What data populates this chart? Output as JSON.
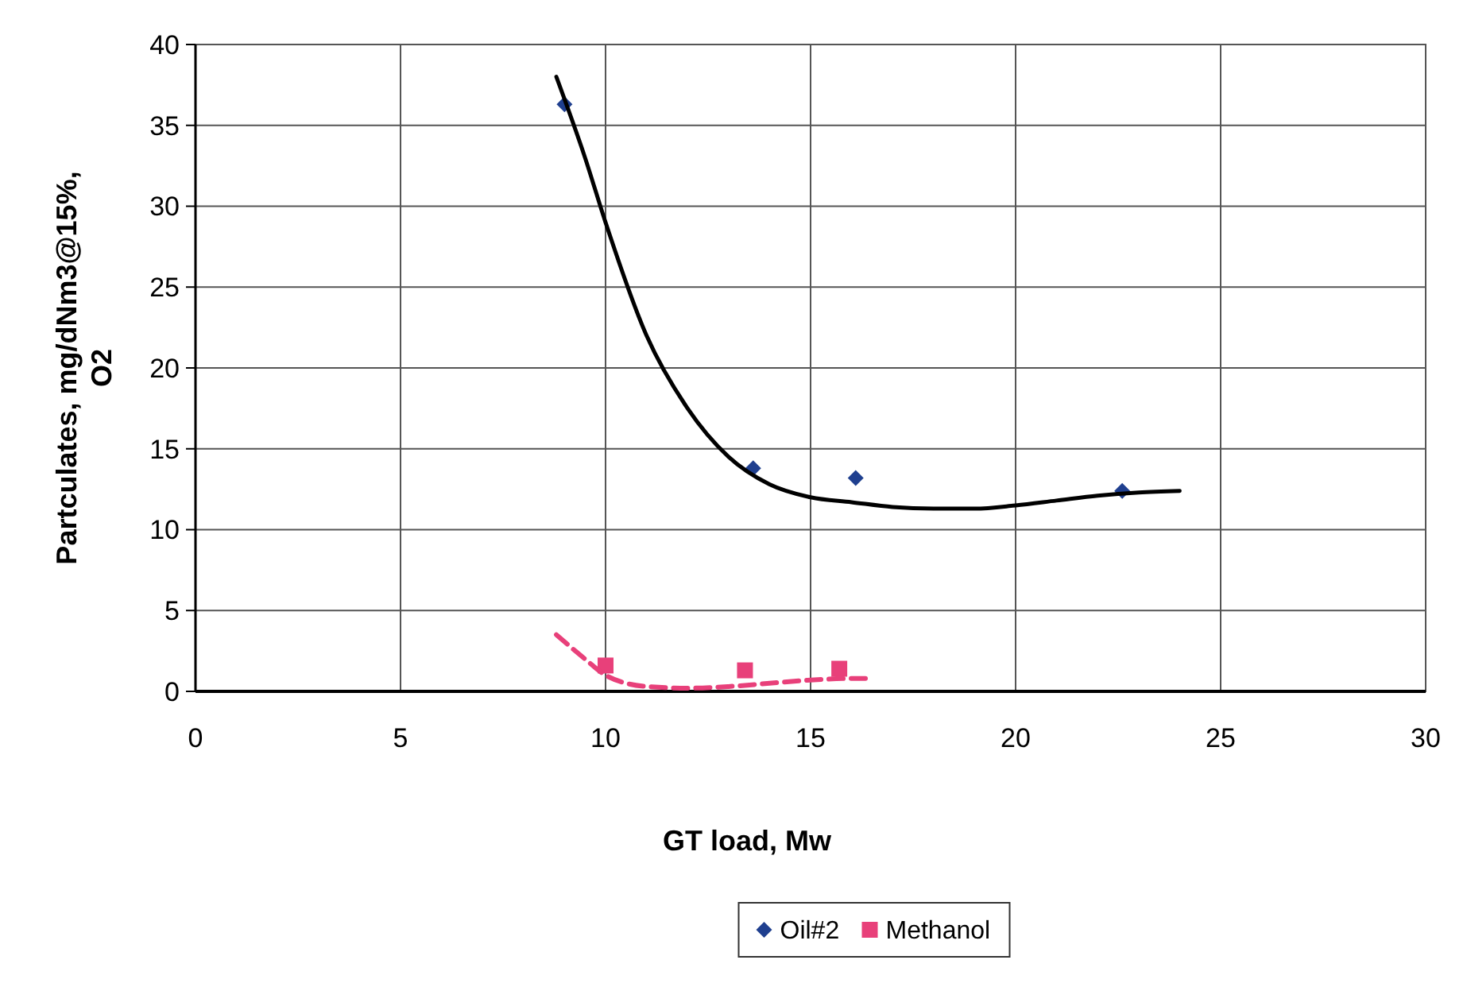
{
  "chart_data": {
    "type": "scatter",
    "xlabel": "GT load, Mw",
    "ylabel": "Partculates, mg/dNm3@15%, O2",
    "xlim": [
      0,
      30
    ],
    "xticks": [
      0,
      5,
      10,
      15,
      20,
      25,
      30
    ],
    "ylim": [
      0,
      40
    ],
    "yticks": [
      0,
      5,
      10,
      15,
      20,
      25,
      30,
      35,
      40
    ],
    "grid": true,
    "legend": "bottom",
    "series": [
      {
        "name": "Oil#2",
        "marker": "diamond",
        "color": "#1f3f8f",
        "x": [
          9.0,
          13.6,
          16.1,
          22.6
        ],
        "values": [
          36.3,
          13.8,
          13.2,
          12.4
        ]
      },
      {
        "name": "Methanol",
        "marker": "square",
        "color": "#e8407a",
        "x": [
          10.0,
          13.4,
          15.7
        ],
        "values": [
          1.6,
          1.3,
          1.4
        ]
      },
      {
        "type": "line",
        "marker": "none",
        "line_style": "solid",
        "color": "#000000",
        "x": [
          8.8,
          9.5,
          10,
          11,
          12,
          13,
          14,
          15,
          16,
          17,
          18,
          19,
          20,
          21,
          22,
          23,
          24
        ],
        "values": [
          38,
          33,
          29,
          22,
          17.5,
          14.5,
          12.8,
          12,
          11.7,
          11.4,
          11.3,
          11.3,
          11.5,
          11.8,
          12.1,
          12.3,
          12.4
        ]
      },
      {
        "type": "line",
        "marker": "none",
        "line_style": "dashed",
        "color": "#e8407a",
        "x": [
          8.8,
          9.5,
          10,
          11,
          12,
          13,
          14,
          15,
          16,
          16.5
        ],
        "values": [
          3.5,
          2,
          1,
          0.3,
          0.2,
          0.3,
          0.5,
          0.7,
          0.8,
          0.8
        ]
      }
    ]
  }
}
